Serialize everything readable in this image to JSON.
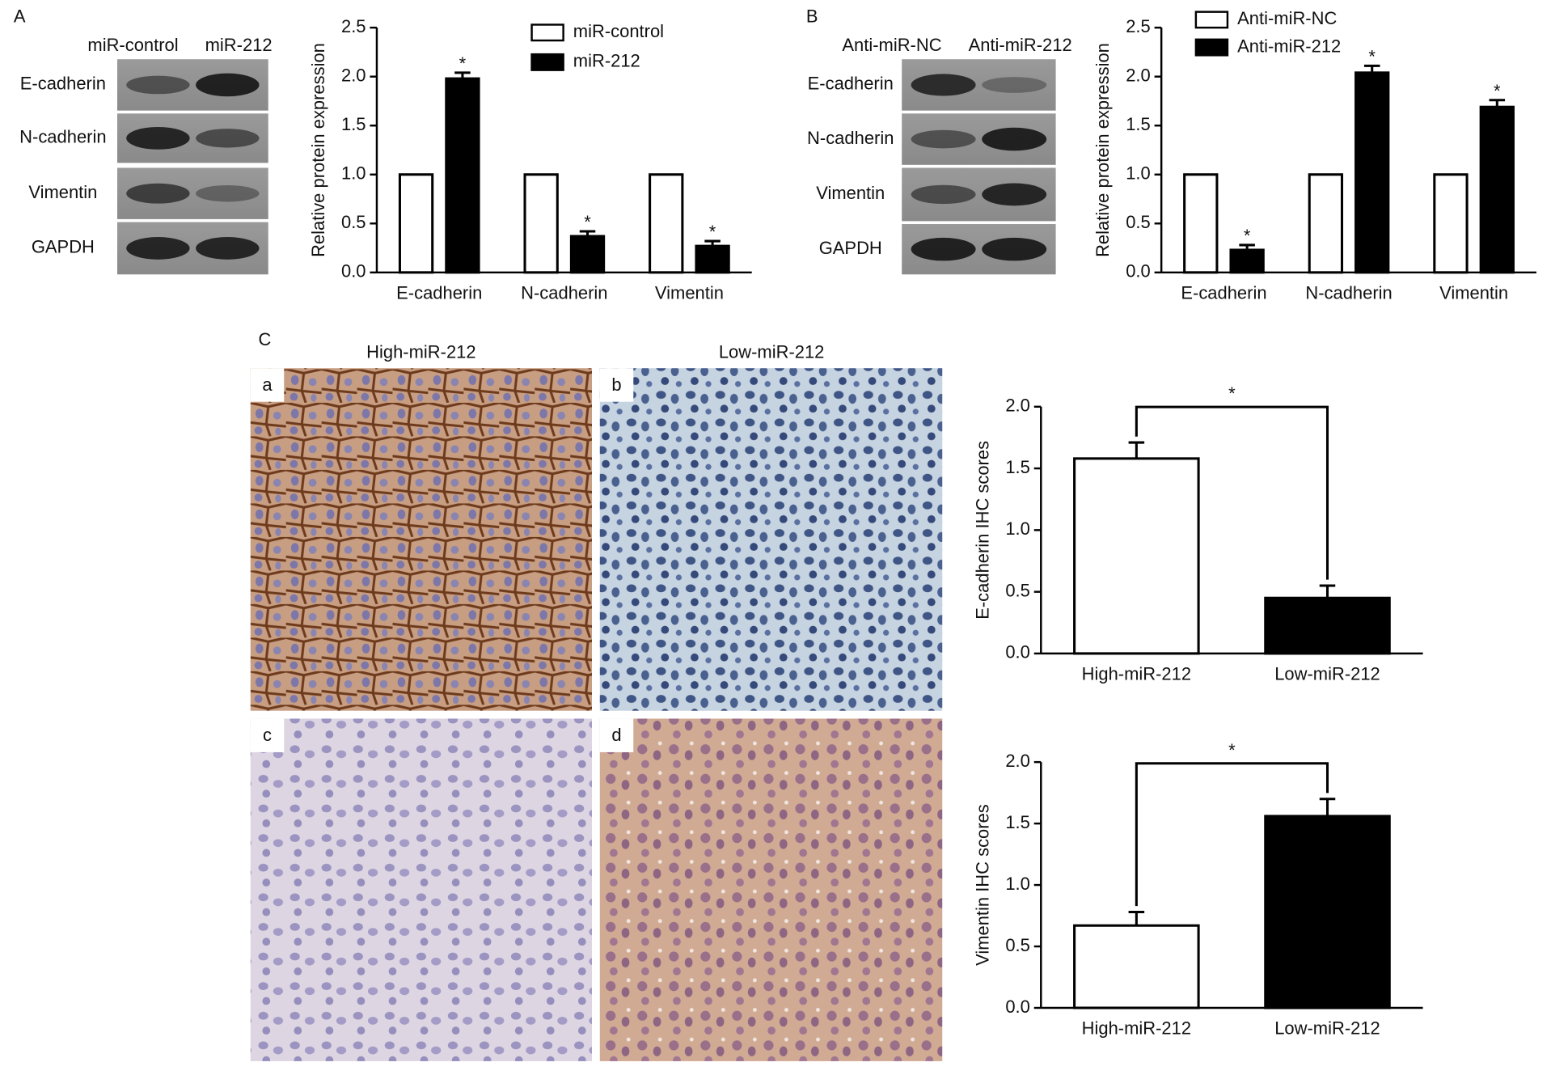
{
  "blots": [
    {
      "panel": "A",
      "columns": [
        "miR-control",
        "miR-212"
      ],
      "rows": [
        "E-cadherin",
        "N-cadherin",
        "Vimentin",
        "GAPDH"
      ]
    },
    {
      "panel": "B",
      "columns": [
        "Anti-miR-NC",
        "Anti-miR-212"
      ],
      "rows": [
        "E-cadherin",
        "N-cadherin",
        "Vimentin",
        "GAPDH"
      ]
    }
  ],
  "ihc": {
    "panel": "C",
    "columns": [
      "High-miR-212",
      "Low-miR-212"
    ],
    "images": [
      "a",
      "b",
      "c",
      "d"
    ]
  },
  "chart_data": [
    {
      "type": "bar",
      "y_label": "Relative protein expression",
      "categories": [
        "E-cadherin",
        "N-cadherin",
        "Vimentin"
      ],
      "series": [
        {
          "name": "miR-control",
          "color": "#ffffff",
          "values": [
            1,
            1,
            1
          ]
        },
        {
          "name": "miR-212",
          "color": "#000000",
          "values": [
            1.98,
            0.37,
            0.27
          ],
          "errors": [
            0.06,
            0.05,
            0.05
          ],
          "markers": [
            "*",
            "*",
            "*"
          ]
        }
      ],
      "ylim": [
        0,
        2.5
      ],
      "yticks": [
        {
          "value": 0,
          "label": "0.0"
        },
        0.5,
        {
          "value": 1,
          "label": "1.0"
        },
        1.5,
        {
          "value": 2,
          "label": "2.0"
        },
        2.5
      ]
    },
    {
      "type": "bar",
      "y_label": "Relative protein expression",
      "categories": [
        "E-cadherin",
        "N-cadherin",
        "Vimentin"
      ],
      "series": [
        {
          "name": "Anti-miR-NC",
          "color": "#ffffff",
          "values": [
            1,
            1,
            1
          ]
        },
        {
          "name": "Anti-miR-212",
          "color": "#000000",
          "values": [
            0.23,
            2.04,
            1.69
          ],
          "errors": [
            0.05,
            0.07,
            0.07
          ],
          "markers": [
            "*",
            "*",
            "*"
          ]
        }
      ],
      "ylim": [
        0,
        2.5
      ],
      "yticks": [
        {
          "value": 0,
          "label": "0.0"
        },
        0.5,
        {
          "value": 1,
          "label": "1.0"
        },
        1.5,
        {
          "value": 2,
          "label": "2.0"
        },
        2.5
      ]
    },
    {
      "type": "bar",
      "y_label": "E-cadherin IHC scores",
      "categories": [
        "High-miR-212",
        "Low-miR-212"
      ],
      "values": [
        1.58,
        0.45
      ],
      "errors": [
        0.13,
        0.1
      ],
      "colors": [
        "#ffffff",
        "#000000"
      ],
      "bracket_label": "*",
      "ylim": [
        0,
        2
      ],
      "yticks": [
        {
          "value": 0,
          "label": "0.0"
        },
        0.5,
        {
          "value": 1,
          "label": "1.0"
        },
        1.5,
        {
          "value": 2,
          "label": "2.0"
        }
      ]
    },
    {
      "type": "bar",
      "y_label": "Vimentin IHC scores",
      "categories": [
        "High-miR-212",
        "Low-miR-212"
      ],
      "values": [
        0.67,
        1.56
      ],
      "errors": [
        0.11,
        0.14
      ],
      "colors": [
        "#ffffff",
        "#000000"
      ],
      "bracket_label": "*",
      "ylim": [
        0,
        2
      ],
      "yticks": [
        {
          "value": 0,
          "label": "0.0"
        },
        0.5,
        {
          "value": 1,
          "label": "1.0"
        },
        1.5,
        {
          "value": 2,
          "label": "2.0"
        }
      ]
    }
  ]
}
